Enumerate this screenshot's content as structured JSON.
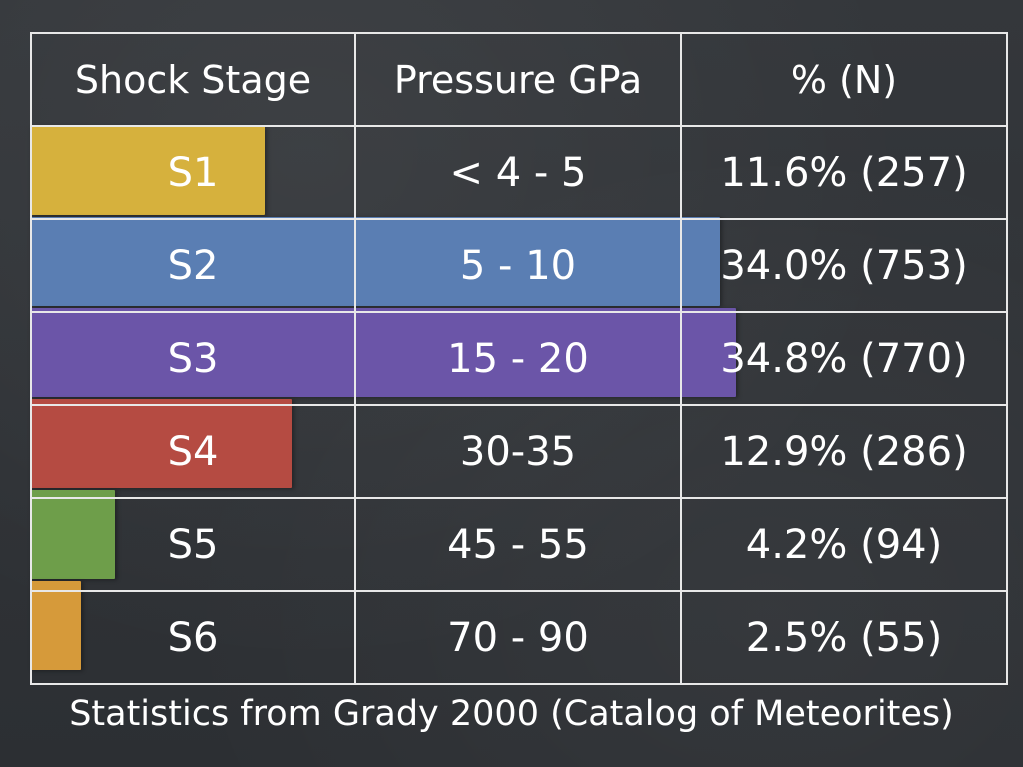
{
  "chart_data": {
    "type": "table",
    "columns": [
      "Shock Stage",
      "Pressure GPa",
      "% (N)"
    ],
    "rows": [
      {
        "stage": "S1",
        "pressure": "< 4 - 5",
        "percent_n": "11.6% (257)",
        "percent": 11.6,
        "n": 257,
        "color": "#d6b13d"
      },
      {
        "stage": "S2",
        "pressure": "5 - 10",
        "percent_n": "34.0% (753)",
        "percent": 34.0,
        "n": 753,
        "color": "#5a7eb3"
      },
      {
        "stage": "S3",
        "pressure": "15 - 20",
        "percent_n": "34.8% (770)",
        "percent": 34.8,
        "n": 770,
        "color": "#6b55a8"
      },
      {
        "stage": "S4",
        "pressure": "30-35",
        "percent_n": "12.9% (286)",
        "percent": 12.9,
        "n": 286,
        "color": "#b54b42"
      },
      {
        "stage": "S5",
        "pressure": "45 - 55",
        "percent_n": "4.2% (94)",
        "percent": 4.2,
        "n": 94,
        "color": "#6e9e4a"
      },
      {
        "stage": "S6",
        "pressure": "70 - 90",
        "percent_n": "2.5% (55)",
        "percent": 2.5,
        "n": 55,
        "color": "#d69a3a"
      }
    ],
    "footnote": "Statistics from Grady 2000 (Catalog of Meteorites)"
  }
}
